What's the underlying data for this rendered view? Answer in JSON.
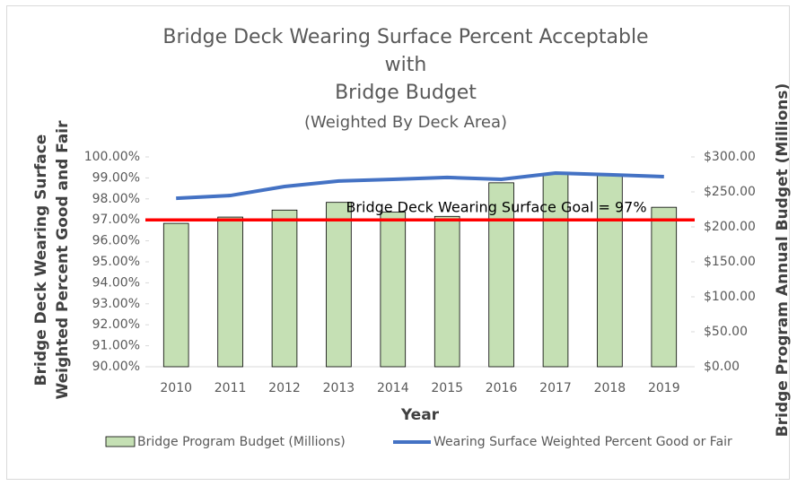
{
  "chart_data": {
    "type": "combo",
    "title": [
      "Bridge Deck Wearing Surface Percent Acceptable",
      "with",
      "Bridge Budget"
    ],
    "subtitle": "(Weighted By Deck Area)",
    "xlabel": "Year",
    "ylabel": [
      "Bridge Deck Wearing Surface",
      "Weighted Percent Good and Fair"
    ],
    "y2label": "Bridge Program Annual Budget (Millions)",
    "categories": [
      "2010",
      "2011",
      "2012",
      "2013",
      "2014",
      "2015",
      "2016",
      "2017",
      "2018",
      "2019"
    ],
    "series": [
      {
        "name": "Bridge Program Budget (Millions)",
        "type": "bar",
        "axis": "y2",
        "color": "#c5e0b4",
        "values": [
          205,
          214,
          224,
          235,
          221,
          215,
          263,
          276,
          273,
          228
        ]
      },
      {
        "name": "Wearing Surface Weighted Percent Good or Fair",
        "type": "line",
        "color": "#4472c4",
        "values": [
          98.03,
          98.16,
          98.59,
          98.85,
          98.93,
          99.02,
          98.93,
          99.23,
          99.15,
          99.06
        ]
      }
    ],
    "goal": {
      "value": 97,
      "label": "Bridge Deck Wearing Surface Goal = 97%",
      "color": "#ff0000"
    },
    "ylim": [
      90,
      100
    ],
    "yticks": [
      {
        "value": 90,
        "label": "90.00%"
      },
      {
        "value": 91,
        "label": "91.00%"
      },
      {
        "value": 92,
        "label": "92.00%"
      },
      {
        "value": 93,
        "label": "93.00%"
      },
      {
        "value": 94,
        "label": "94.00%"
      },
      {
        "value": 95,
        "label": "95.00%"
      },
      {
        "value": 96,
        "label": "96.00%"
      },
      {
        "value": 97,
        "label": "97.00%"
      },
      {
        "value": 98,
        "label": "98.00%"
      },
      {
        "value": 99,
        "label": "99.00%"
      },
      {
        "value": 100,
        "label": "100.00%"
      }
    ],
    "y2lim": [
      0,
      300
    ],
    "y2ticks": [
      {
        "value": 0,
        "label": "$0.00"
      },
      {
        "value": 50,
        "label": "$50.00"
      },
      {
        "value": 100,
        "label": "$100.00"
      },
      {
        "value": 150,
        "label": "$150.00"
      },
      {
        "value": 200,
        "label": "$200.00"
      },
      {
        "value": 250,
        "label": "$250.00"
      },
      {
        "value": 300,
        "label": "$300.00"
      }
    ],
    "legend": "bottom"
  }
}
